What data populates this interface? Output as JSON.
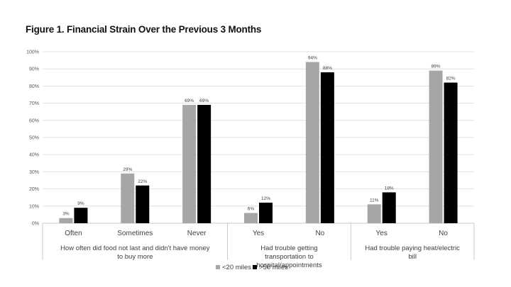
{
  "chart_data": {
    "type": "bar",
    "title": "Figure 1. Financial Strain Over the Previous 3 Months",
    "xlabel": "",
    "ylabel": "",
    "ylim": [
      0,
      100
    ],
    "y_ticks": [
      "0%",
      "10%",
      "20%",
      "30%",
      "40%",
      "50%",
      "60%",
      "70%",
      "80%",
      "90%",
      "100%"
    ],
    "grid": true,
    "legend_position": "bottom",
    "groups": [
      {
        "label": "How often did food not last and didn't have money to buy more",
        "categories": [
          "Often",
          "Sometimes",
          "Never"
        ]
      },
      {
        "label": "Had trouble getting transportation to hospital/appointments",
        "categories": [
          "Yes",
          "No"
        ]
      },
      {
        "label": "Had trouble paying heat/electric bill",
        "categories": [
          "Yes",
          "No"
        ]
      }
    ],
    "categories": [
      "Often",
      "Sometimes",
      "Never",
      "Yes",
      "No",
      "Yes",
      "No"
    ],
    "series": [
      {
        "name": "<20 miles",
        "color": "#a6a6a6",
        "values": [
          3,
          29,
          69,
          6,
          94,
          11,
          89
        ]
      },
      {
        "name": ">50 miles",
        "color": "#000000",
        "values": [
          9,
          22,
          69,
          12,
          88,
          18,
          82
        ]
      }
    ]
  }
}
